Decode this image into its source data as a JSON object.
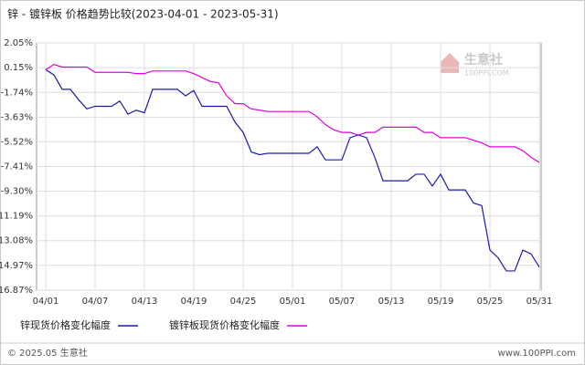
{
  "chart_data": {
    "type": "line",
    "title": "锌 - 镀锌板 价格趋势比较(2023-04-01 - 2023-05-31)",
    "watermark": "生意社",
    "watermark_url": "100PPI.COM",
    "footer_left": "© 2025.05 生意社",
    "footer_right": "www.100PPI.com",
    "categories": [
      "04/01",
      null,
      null,
      null,
      null,
      null,
      "04/07",
      null,
      null,
      null,
      null,
      null,
      "04/13",
      null,
      null,
      null,
      null,
      null,
      "04/19",
      null,
      null,
      null,
      null,
      null,
      "04/25",
      null,
      null,
      null,
      null,
      null,
      "05/01",
      null,
      null,
      null,
      null,
      null,
      "05/07",
      null,
      null,
      null,
      null,
      null,
      "05/13",
      null,
      null,
      null,
      null,
      null,
      "05/19",
      null,
      null,
      null,
      null,
      null,
      "05/25",
      null,
      null,
      null,
      null,
      null,
      "05/31"
    ],
    "series": [
      {
        "name": "锌现货价格变化幅度",
        "color": "#1c1ca8",
        "values": [
          0,
          -0.4,
          -1.5,
          -1.5,
          -2.3,
          -3.0,
          -2.8,
          -2.8,
          -2.8,
          -2.4,
          -3.4,
          -3.1,
          -3.3,
          -1.5,
          -1.5,
          -1.5,
          -1.5,
          -2.0,
          -1.6,
          -2.8,
          -2.8,
          -2.8,
          -2.8,
          -4.0,
          -4.8,
          -6.3,
          -6.5,
          -6.4,
          -6.4,
          -6.4,
          -6.4,
          -6.4,
          -6.4,
          -5.9,
          -6.9,
          -6.9,
          -6.9,
          -5.2,
          -5.0,
          -5.2,
          -6.7,
          -8.5,
          -8.5,
          -8.5,
          -8.5,
          -8.0,
          -8.0,
          -8.9,
          -8.0,
          -9.2,
          -9.2,
          -9.2,
          -10.2,
          -10.4,
          -13.8,
          -14.4,
          -15.4,
          -15.4,
          -13.8,
          -14.1,
          -15.1
        ]
      },
      {
        "name": "镀锌板现货价格变化幅度",
        "color": "#e000e0",
        "values": [
          0,
          0.4,
          0.2,
          0.2,
          0.2,
          0.2,
          -0.2,
          -0.2,
          -0.2,
          -0.2,
          -0.2,
          -0.3,
          -0.3,
          -0.1,
          -0.1,
          -0.1,
          -0.1,
          -0.1,
          -0.3,
          -0.6,
          -0.9,
          -1.0,
          -2.0,
          -2.6,
          -2.6,
          -3.0,
          -3.1,
          -3.2,
          -3.2,
          -3.2,
          -3.2,
          -3.2,
          -3.2,
          -3.6,
          -4.2,
          -4.6,
          -4.8,
          -4.8,
          -5.0,
          -4.8,
          -4.8,
          -4.4,
          -4.4,
          -4.4,
          -4.4,
          -4.4,
          -4.8,
          -4.8,
          -5.2,
          -5.2,
          -5.2,
          -5.2,
          -5.4,
          -5.6,
          -5.9,
          -5.9,
          -5.9,
          -5.9,
          -6.2,
          -6.7,
          -7.1
        ]
      }
    ],
    "ylim": [
      -16.87,
      2.05
    ],
    "yticks": [
      {
        "value": 2.05,
        "label": "2.05%"
      },
      {
        "value": 0.15,
        "label": "0.15%"
      },
      {
        "value": -1.74,
        "label": "-1.74%"
      },
      {
        "value": -3.63,
        "label": "-3.63%"
      },
      {
        "value": -5.52,
        "label": "-5.52%"
      },
      {
        "value": -7.41,
        "label": "-7.41%"
      },
      {
        "value": -9.3,
        "label": "-9.30%"
      },
      {
        "value": -11.19,
        "label": "-11.19%"
      },
      {
        "value": -13.08,
        "label": "-13.08%"
      },
      {
        "value": -14.97,
        "label": "-14.97%"
      },
      {
        "value": -16.87,
        "label": "-16.87%"
      }
    ],
    "grid": true
  }
}
